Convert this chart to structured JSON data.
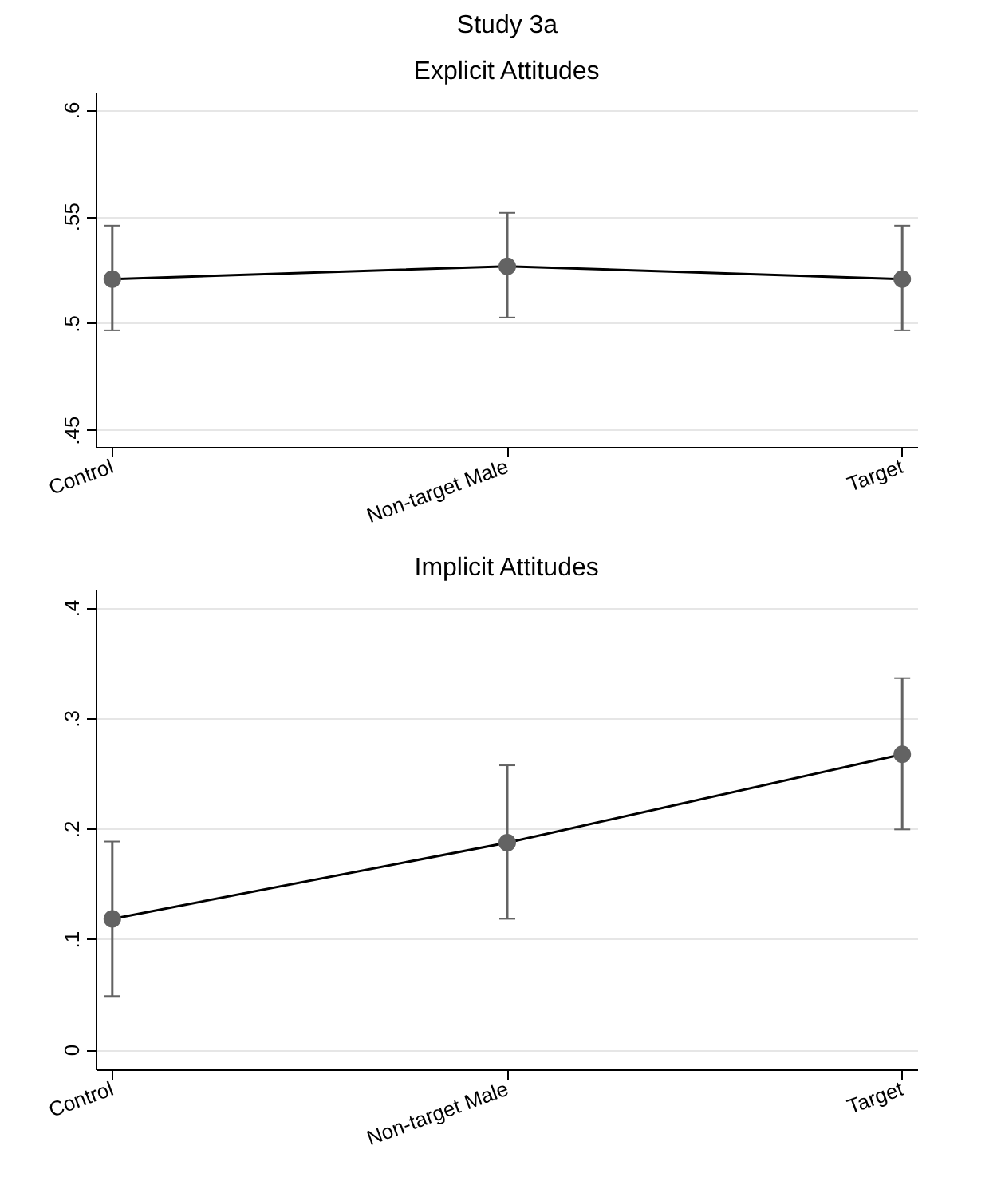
{
  "chart_data": [
    {
      "type": "line",
      "title": "Study 3a",
      "subtitle": "Explicit Attitudes",
      "categories": [
        "Control",
        "Non-target Male",
        "Target"
      ],
      "series": [
        {
          "color": "#636363",
          "values": [
            0.521,
            0.527,
            0.521
          ],
          "errors": [
            [
              0.497,
              0.546
            ],
            [
              0.503,
              0.552
            ],
            [
              0.497,
              0.546
            ]
          ]
        }
      ],
      "ylim": [
        0.442,
        0.608
      ],
      "yticks": [
        {
          "value": 0.45,
          "label": ".45"
        },
        {
          "value": 0.5,
          "label": ".5"
        },
        {
          "value": 0.55,
          "label": ".55"
        },
        {
          "value": 0.6,
          "label": ".6"
        }
      ],
      "grid": "y",
      "marker": "circle",
      "line_style": "solid"
    },
    {
      "type": "line",
      "title": "Implicit Attitudes",
      "categories": [
        "Control",
        "Non-target Male",
        "Target"
      ],
      "series": [
        {
          "color": "#636363",
          "values": [
            0.119,
            0.188,
            0.268
          ],
          "errors": [
            [
              0.049,
              0.189
            ],
            [
              0.119,
              0.258
            ],
            [
              0.2,
              0.337
            ]
          ]
        }
      ],
      "ylim": [
        -0.018,
        0.417
      ],
      "yticks": [
        0,
        {
          "value": 0.1,
          "label": ".1"
        },
        {
          "value": 0.2,
          "label": ".2"
        },
        {
          "value": 0.3,
          "label": ".3"
        },
        {
          "value": 0.4,
          "label": ".4"
        }
      ],
      "grid": "y",
      "marker": "circle",
      "line_style": "solid"
    }
  ]
}
